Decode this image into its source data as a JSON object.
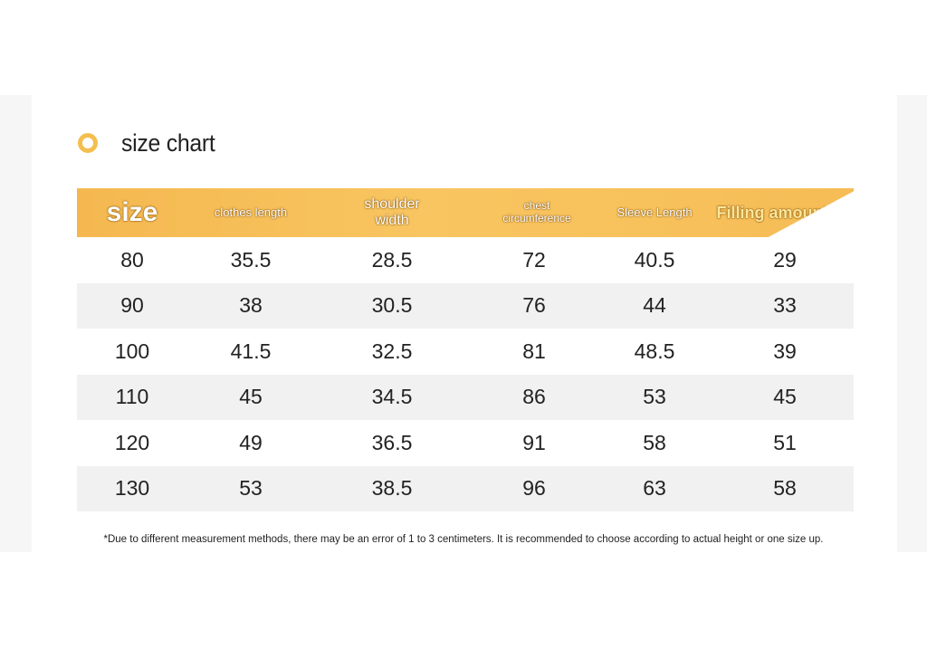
{
  "title": "size chart",
  "headers": [
    {
      "label": "size"
    },
    {
      "label": "clothes length"
    },
    {
      "label": "shoulder width"
    },
    {
      "label": "chest circumference"
    },
    {
      "label": "Sleeve Length"
    },
    {
      "label": "Filling amount (g)"
    }
  ],
  "rows": [
    [
      "80",
      "35.5",
      "28.5",
      "72",
      "40.5",
      "29"
    ],
    [
      "90",
      "38",
      "30.5",
      "76",
      "44",
      "33"
    ],
    [
      "100",
      "41.5",
      "32.5",
      "81",
      "48.5",
      "39"
    ],
    [
      "110",
      "45",
      "34.5",
      "86",
      "53",
      "45"
    ],
    [
      "120",
      "49",
      "36.5",
      "91",
      "58",
      "51"
    ],
    [
      "130",
      "53",
      "38.5",
      "96",
      "63",
      "58"
    ]
  ],
  "note": "*Due to different measurement methods, there may be an error of 1 to 3 centimeters. It is recommended to choose according to actual height or one size up.",
  "colors": {
    "accent": "#f5bf4f",
    "row_shade": "#f1f1f1"
  },
  "icons": {
    "title_marker": "ring-icon"
  }
}
